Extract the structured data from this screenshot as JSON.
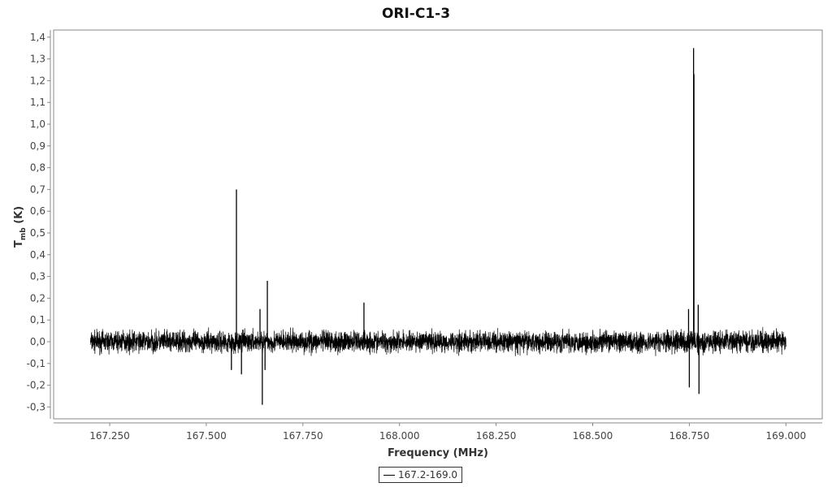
{
  "chart_data": {
    "type": "line",
    "title": "ORI-C1-3",
    "xlabel": "Frequency (MHz)",
    "ylabel_main": "T",
    "ylabel_sub": "mb",
    "ylabel_unit": " (K)",
    "xlim": [
      167.1,
      169.1
    ],
    "ylim": [
      -0.36,
      1.42
    ],
    "x_ticks": [
      "167.250",
      "167.500",
      "167.750",
      "168.000",
      "168.250",
      "168.500",
      "168.750",
      "169.000"
    ],
    "x_tick_values": [
      167.25,
      167.5,
      167.75,
      168.0,
      168.25,
      168.5,
      168.75,
      169.0
    ],
    "y_ticks": [
      "-0,3",
      "-0,2",
      "-0,1",
      "0,0",
      "0,1",
      "0,2",
      "0,3",
      "0,4",
      "0,5",
      "0,6",
      "0,7",
      "0,8",
      "0,9",
      "1,0",
      "1,1",
      "1,2",
      "1,3",
      "1,4"
    ],
    "y_tick_values": [
      -0.3,
      -0.2,
      -0.1,
      0,
      0.1,
      0.2,
      0.3,
      0.4,
      0.5,
      0.6,
      0.7,
      0.8,
      0.9,
      1.0,
      1.1,
      1.2,
      1.3,
      1.4
    ],
    "series": [
      {
        "name": "167.2-169.0",
        "x_range": [
          167.2,
          169.0
        ],
        "noise_level": 0.03,
        "features": [
          {
            "x": 167.565,
            "y": -0.13
          },
          {
            "x": 167.578,
            "y": 0.7
          },
          {
            "x": 167.591,
            "y": -0.15
          },
          {
            "x": 167.639,
            "y": 0.15
          },
          {
            "x": 167.645,
            "y": -0.29
          },
          {
            "x": 167.652,
            "y": -0.13
          },
          {
            "x": 167.658,
            "y": 0.28
          },
          {
            "x": 167.908,
            "y": 0.18
          },
          {
            "x": 168.748,
            "y": 0.15
          },
          {
            "x": 168.75,
            "y": -0.21
          },
          {
            "x": 168.761,
            "y": 1.35
          },
          {
            "x": 168.762,
            "y": 1.23
          },
          {
            "x": 168.773,
            "y": 0.17
          },
          {
            "x": 168.775,
            "y": -0.24
          }
        ],
        "color": "#000000"
      }
    ],
    "grid": false,
    "legend": "bottom-center"
  }
}
